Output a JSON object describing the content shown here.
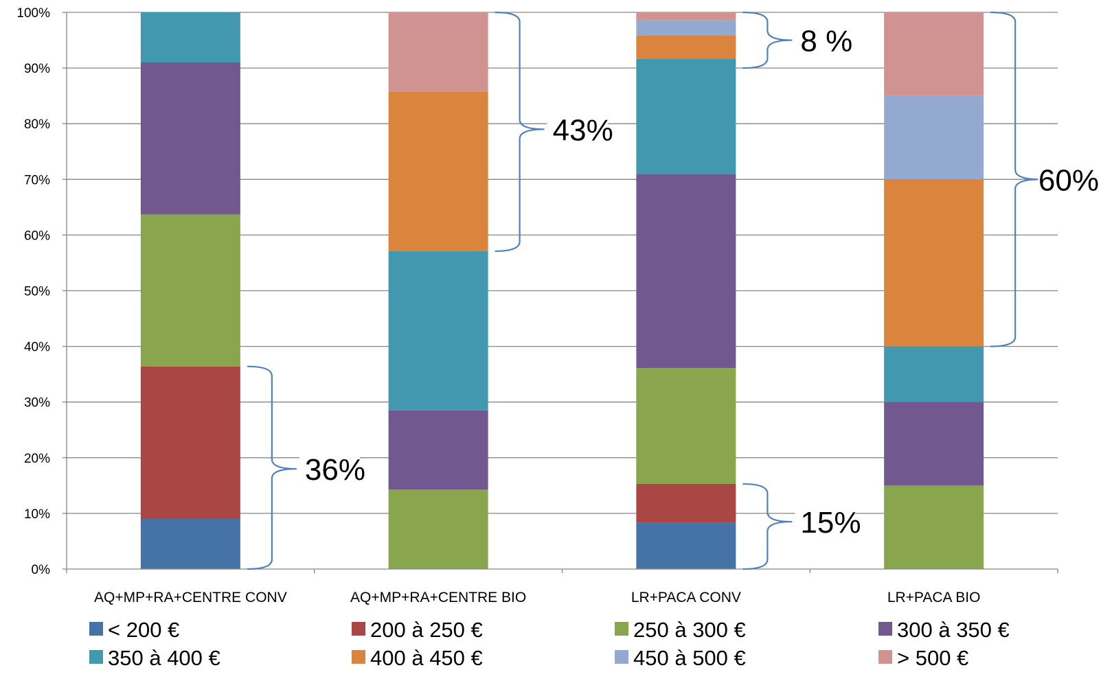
{
  "chart_data": {
    "type": "bar",
    "stacked": true,
    "categories": [
      "AQ+MP+RA+CENTRE CONV",
      "AQ+MP+RA+CENTRE BIO",
      "LR+PACA CONV",
      "LR+PACA BIO"
    ],
    "ylim": [
      0,
      100
    ],
    "yticks": [
      "0%",
      "10%",
      "20%",
      "30%",
      "40%",
      "50%",
      "60%",
      "70%",
      "80%",
      "90%",
      "100%"
    ],
    "grid": true,
    "legend_position": "bottom",
    "series": [
      {
        "name": "< 200 €",
        "color": "#4572A7",
        "values": [
          9,
          0,
          8.3,
          0
        ]
      },
      {
        "name": "200 à 250 €",
        "color": "#AA4643",
        "values": [
          27.4,
          0,
          7,
          0
        ]
      },
      {
        "name": "250 à 300 €",
        "color": "#89A54E",
        "values": [
          27.3,
          14.3,
          20.8,
          15
        ]
      },
      {
        "name": "300 à 350 €",
        "color": "#71588F",
        "values": [
          27.3,
          14.2,
          34.8,
          15
        ]
      },
      {
        "name": "350 à 400 €",
        "color": "#4198AF",
        "values": [
          9,
          28.6,
          20.8,
          10
        ]
      },
      {
        "name": "400 à 450 €",
        "color": "#DB843D",
        "values": [
          0,
          28.6,
          4.2,
          30
        ]
      },
      {
        "name": "450 à 500 €",
        "color": "#93A9CF",
        "values": [
          0,
          0,
          2.7,
          15
        ]
      },
      {
        "name": "> 500 €",
        "color": "#D19392",
        "values": [
          0,
          14.3,
          1.4,
          15
        ]
      }
    ],
    "annotations": [
      {
        "text": "36%",
        "category": 0,
        "from": 0,
        "to": 36.4,
        "label_y": 18
      },
      {
        "text": "43%",
        "category": 1,
        "from": 57.1,
        "to": 100,
        "label_y": 79
      },
      {
        "text": "8 %",
        "category": 2,
        "from": 90,
        "to": 100,
        "label_y": 95
      },
      {
        "text": "15%",
        "category": 2,
        "from": 0,
        "to": 15.3,
        "label_y": 8.5
      },
      {
        "text": "60%",
        "category": 3,
        "from": 40,
        "to": 100,
        "label_y": 70
      }
    ]
  }
}
